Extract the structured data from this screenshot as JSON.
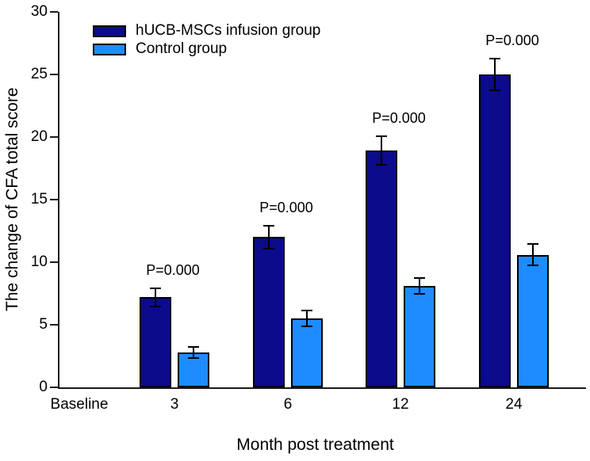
{
  "chart_data": {
    "type": "bar",
    "title": "",
    "xlabel": "Month post treatment",
    "ylabel": "The change of CFA total score",
    "categories": [
      "Baseline",
      "3",
      "6",
      "12",
      "24"
    ],
    "series": [
      {
        "name": "hUCB-MSCs infusion group",
        "color": "#0b0b8b",
        "values": [
          0,
          7.2,
          12.0,
          18.9,
          25.0
        ],
        "errors": [
          0,
          0.8,
          1.0,
          1.2,
          1.3
        ]
      },
      {
        "name": "Control group",
        "color": "#1e8cff",
        "values": [
          0,
          2.8,
          5.5,
          8.1,
          10.6
        ],
        "errors": [
          0,
          0.5,
          0.7,
          0.7,
          0.9
        ]
      }
    ],
    "annotations": [
      {
        "category": "3",
        "text": "P=0.000"
      },
      {
        "category": "6",
        "text": "P=0.000"
      },
      {
        "category": "12",
        "text": "P=0.000"
      },
      {
        "category": "24",
        "text": "P=0.000"
      }
    ],
    "ylim": [
      0,
      30
    ],
    "yticks": [
      0,
      5,
      10,
      15,
      20,
      25,
      30
    ],
    "grid": false,
    "legend_position": "top-left",
    "error_bars": true
  }
}
